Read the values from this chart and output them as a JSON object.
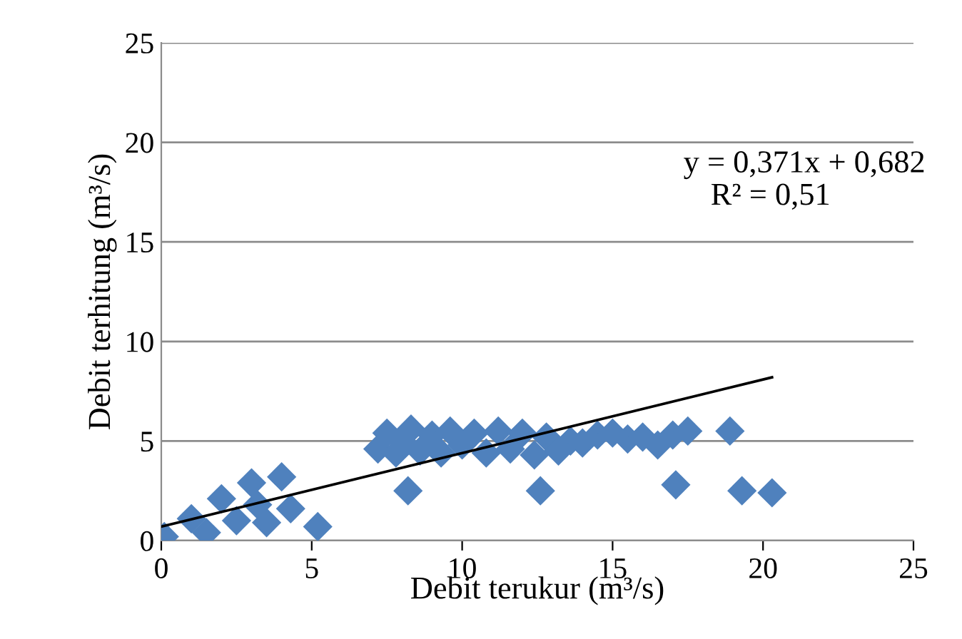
{
  "chart_data": {
    "type": "scatter",
    "xlabel": "Debit terukur (m³/s)",
    "ylabel": "Debit terhitung (m³/s)",
    "xlim": [
      0,
      25
    ],
    "ylim": [
      0,
      25
    ],
    "xticks": [
      0,
      5,
      10,
      15,
      20,
      25
    ],
    "yticks": [
      0,
      5,
      10,
      15,
      20,
      25
    ],
    "grid": "y",
    "marker": "diamond",
    "annotations": [
      "y = 0,371x + 0,682",
      "R² = 0,51"
    ],
    "series": [
      {
        "color": "#4f81bd",
        "x": [
          0.1,
          1,
          2,
          3,
          4,
          1.5,
          2.5,
          3.5,
          4.3,
          3.2,
          5.2,
          7.2,
          7.5,
          7.8,
          8,
          8.3,
          8.6,
          9,
          9.3,
          9.6,
          10,
          10.4,
          10.8,
          11.2,
          11.6,
          12,
          12.4,
          12.8,
          13.2,
          13.6,
          14,
          14.5,
          15,
          15.5,
          16,
          16.5,
          17,
          17.5,
          8.2,
          12.6,
          17.1,
          18.9,
          19.3,
          20.3
        ],
        "values": [
          0.2,
          1.1,
          2.1,
          2.9,
          3.2,
          0.4,
          1,
          0.9,
          1.6,
          1.8,
          0.7,
          4.6,
          5.4,
          4.4,
          5,
          5.6,
          4.5,
          5.3,
          4.4,
          5.5,
          4.8,
          5.4,
          4.4,
          5.5,
          4.6,
          5.4,
          4.3,
          5.2,
          4.5,
          5,
          4.9,
          5.3,
          5.4,
          5.1,
          5.2,
          4.8,
          5.3,
          5.5,
          2.5,
          2.5,
          2.8,
          5.5,
          2.5,
          2.4
        ]
      },
      {
        "type": "line",
        "marker": "none",
        "color": "#000000",
        "x": [
          0,
          20.3
        ],
        "values": [
          0.7,
          8.2
        ]
      }
    ]
  }
}
